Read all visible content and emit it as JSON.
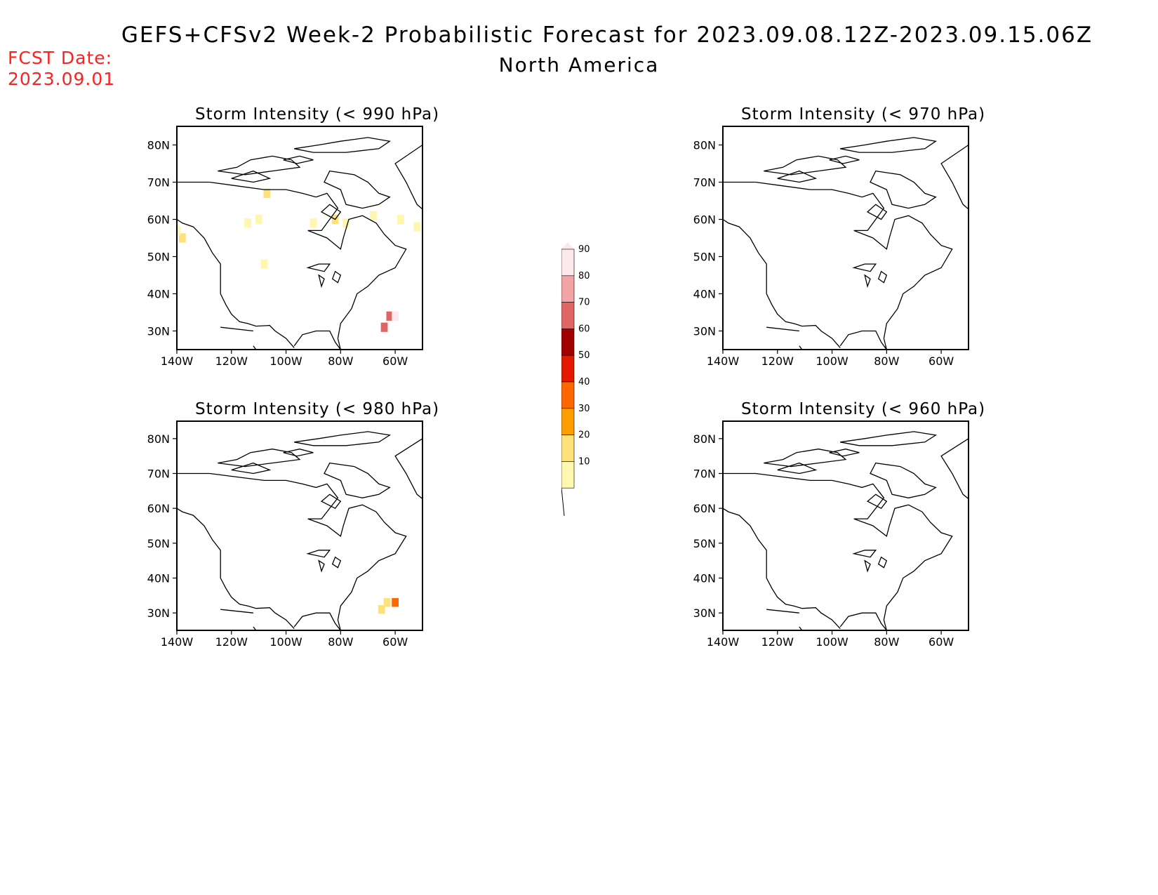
{
  "header": {
    "title": "GEFS+CFSv2 Week-2 Probabilistic Forecast for 2023.09.08.12Z-2023.09.15.06Z",
    "subtitle": "North America",
    "fcst_label": "FCST Date:",
    "fcst_date": "2023.09.01"
  },
  "panels": [
    {
      "title": "Storm Intensity (< 990 hPa)"
    },
    {
      "title": "Storm Intensity (< 970 hPa)"
    },
    {
      "title": "Storm Intensity (< 980 hPa)"
    },
    {
      "title": "Storm Intensity (< 960 hPa)"
    }
  ],
  "axes": {
    "lat_ticks": [
      "80N",
      "70N",
      "60N",
      "50N",
      "40N",
      "30N"
    ],
    "lon_ticks": [
      "140W",
      "120W",
      "100W",
      "80W",
      "60W"
    ]
  },
  "colorbar": {
    "labels": [
      "90",
      "80",
      "70",
      "60",
      "50",
      "40",
      "30",
      "20",
      "10"
    ],
    "colors": [
      "#fde9ec",
      "#f4a3a5",
      "#e06666",
      "#a30000",
      "#e31a00",
      "#ff6600",
      "#ff9e00",
      "#fde27a",
      "#fff6b0"
    ]
  },
  "map_extent": {
    "lon": [
      -140,
      -50
    ],
    "lat": [
      25,
      85
    ]
  },
  "probability_cells": {
    "p990": [
      {
        "lon": -138,
        "lat": 55,
        "p": 20
      },
      {
        "lon": -140,
        "lat": 57,
        "p": 10
      },
      {
        "lon": -107,
        "lat": 67,
        "p": 20
      },
      {
        "lon": -110,
        "lat": 60,
        "p": 10
      },
      {
        "lon": -114,
        "lat": 59,
        "p": 10
      },
      {
        "lon": -108,
        "lat": 48,
        "p": 10
      },
      {
        "lon": -90,
        "lat": 59,
        "p": 10
      },
      {
        "lon": -82,
        "lat": 60,
        "p": 20
      },
      {
        "lon": -78,
        "lat": 59,
        "p": 10
      },
      {
        "lon": -68,
        "lat": 61,
        "p": 10
      },
      {
        "lon": -58,
        "lat": 60,
        "p": 10
      },
      {
        "lon": -52,
        "lat": 58,
        "p": 10
      },
      {
        "lon": -64,
        "lat": 31,
        "p": 70
      },
      {
        "lon": -62,
        "lat": 34,
        "p": 70
      },
      {
        "lon": -60,
        "lat": 34,
        "p": 90
      }
    ],
    "p980": [
      {
        "lon": -65,
        "lat": 31,
        "p": 20
      },
      {
        "lon": -63,
        "lat": 33,
        "p": 20
      },
      {
        "lon": -60,
        "lat": 33,
        "p": 40
      }
    ],
    "p970": [],
    "p960": []
  }
}
